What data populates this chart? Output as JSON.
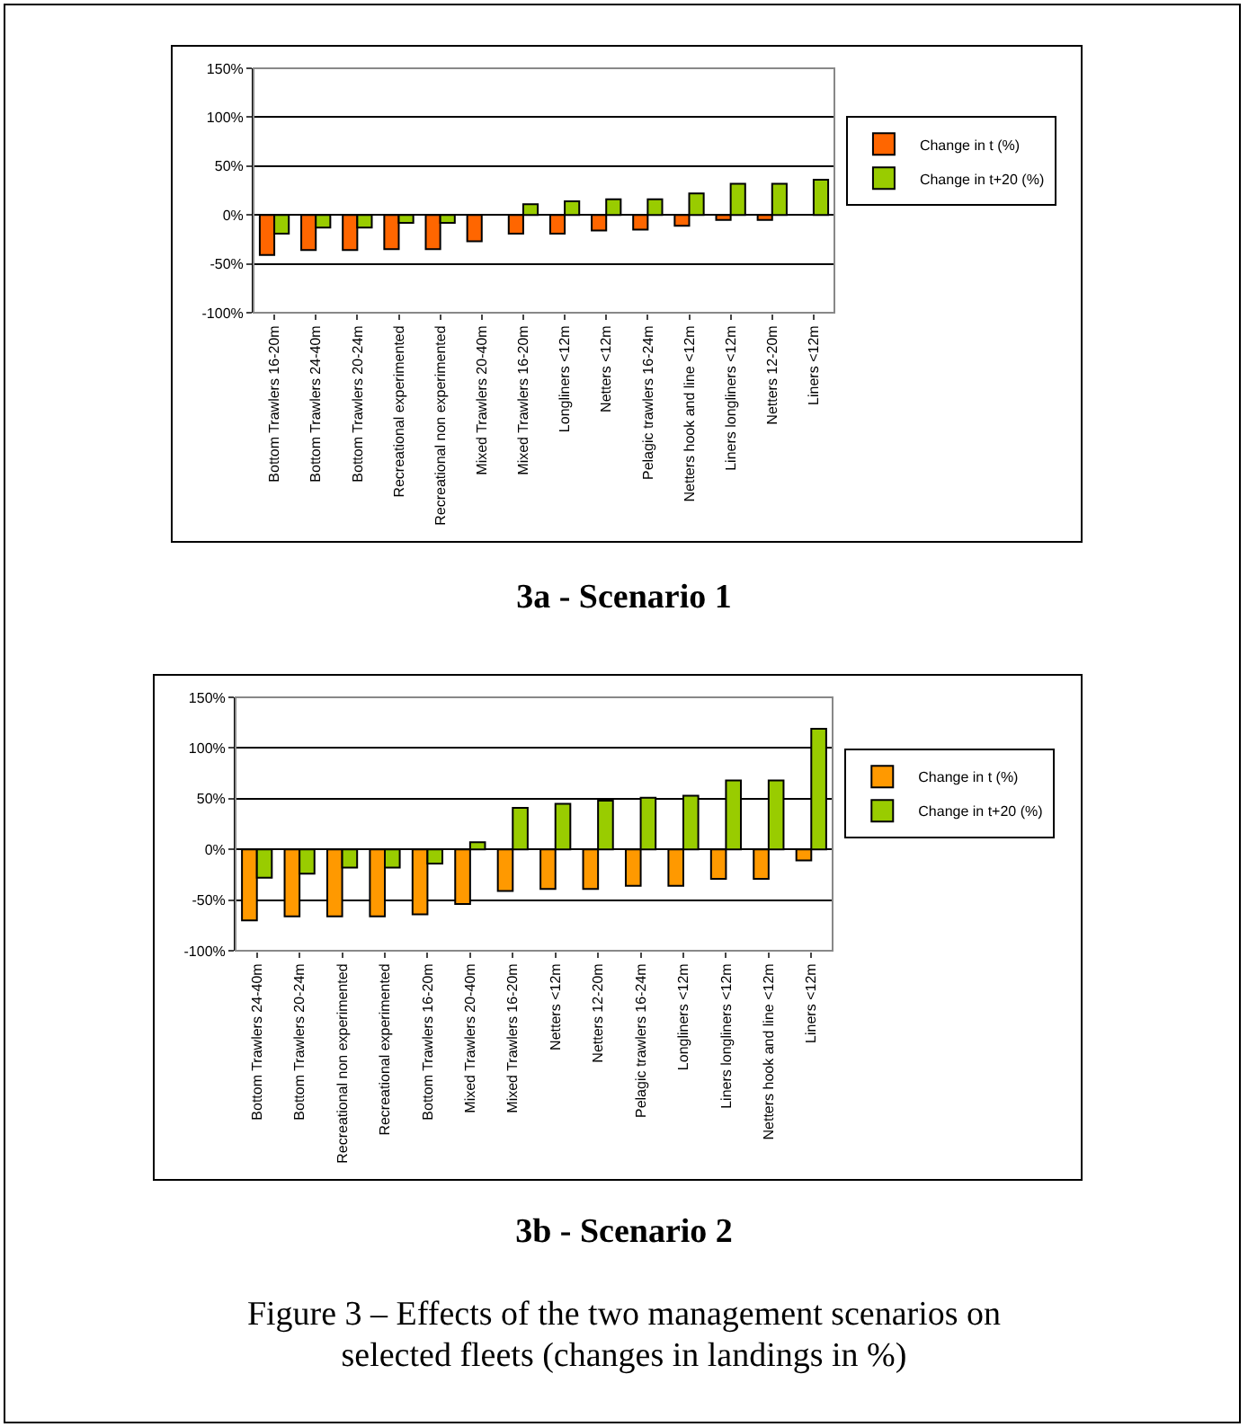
{
  "chart_data": [
    {
      "type": "bar",
      "categories": [
        "Bottom Trawlers 16-20m",
        "Bottom Trawlers 24-40m",
        "Bottom Trawlers 20-24m",
        "Recreational experimented",
        "Recreational non experimented",
        "Mixed Trawlers 20-40m",
        "Mixed Trawlers 16-20m",
        "Longliners <12m",
        "Netters <12m",
        "Pelagic trawlers 16-24m",
        "Netters hook and line <12m",
        "Liners longliners <12m",
        "Netters 12-20m",
        "Liners <12m"
      ],
      "series": [
        {
          "name": "Change in t (%)",
          "color": "#ff6600",
          "values": [
            -41,
            -36,
            -36,
            -35,
            -35,
            -27,
            -19,
            -19,
            -16,
            -15,
            -11,
            -5,
            -5,
            null
          ]
        },
        {
          "name": "Change in t+20 (%)",
          "color": "#99cc00",
          "values": [
            -19,
            -13,
            -13,
            -8,
            -8,
            null,
            11,
            14,
            16,
            16,
            22,
            32,
            32,
            36
          ]
        }
      ],
      "ylim": [
        -100,
        150
      ],
      "yticks": [
        {
          "value": -100,
          "label": "-100%"
        },
        {
          "value": -50,
          "label": "-50%"
        },
        {
          "value": 0,
          "label": "0%"
        },
        {
          "value": 50,
          "label": "50%"
        },
        {
          "value": 100,
          "label": "100%"
        },
        {
          "value": 150,
          "label": "150%"
        }
      ],
      "grid": "y",
      "legend": "right",
      "annotations": [
        "3a - Scenario 1"
      ]
    },
    {
      "type": "bar",
      "categories": [
        "Bottom Trawlers 24-40m",
        "Bottom Trawlers 20-24m",
        "Recreational non experimented",
        "Recreational experimented",
        "Bottom Trawlers 16-20m",
        "Mixed Trawlers 20-40m",
        "Mixed Trawlers 16-20m",
        "Netters <12m",
        "Netters 12-20m",
        "Pelagic trawlers 16-24m",
        "Longliners <12m",
        "Liners longliners <12m",
        "Netters hook and line <12m",
        "Liners <12m"
      ],
      "series": [
        {
          "name": "Change in t (%)",
          "color": "#ff9900",
          "values": [
            -70,
            -66,
            -66,
            -66,
            -64,
            -54,
            -41,
            -39,
            -39,
            -36,
            -36,
            -29,
            -29,
            -11
          ]
        },
        {
          "name": "Change in t+20 (%)",
          "color": "#99cc00",
          "values": [
            -28,
            -24,
            -18,
            -18,
            -14,
            7,
            41,
            45,
            48,
            51,
            53,
            68,
            68,
            119
          ]
        }
      ],
      "ylim": [
        -100,
        150
      ],
      "yticks": [
        {
          "value": -100,
          "label": "-100%"
        },
        {
          "value": -50,
          "label": "-50%"
        },
        {
          "value": 0,
          "label": "0%"
        },
        {
          "value": 50,
          "label": "50%"
        },
        {
          "value": 100,
          "label": "100%"
        },
        {
          "value": 150,
          "label": "150%"
        }
      ],
      "grid": "y",
      "legend": "right",
      "annotations": [
        "3b - Scenario 2",
        "Figure 3 – Effects of the two management scenarios on selected fleets (changes in landings in %)"
      ]
    }
  ]
}
